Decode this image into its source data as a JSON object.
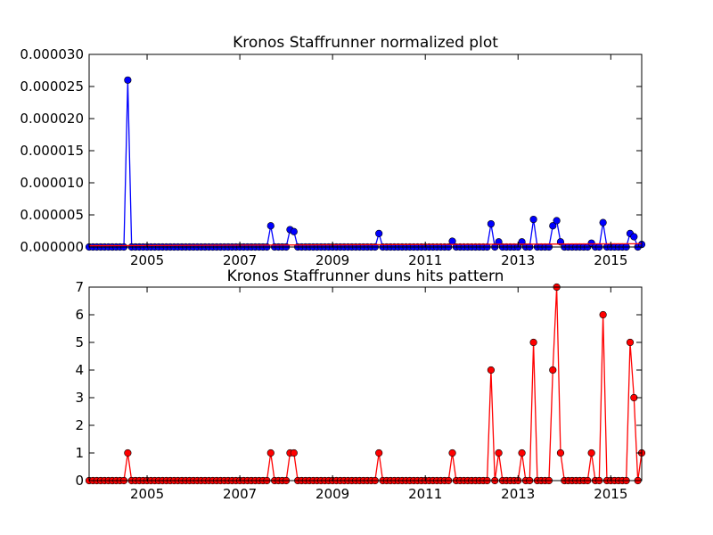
{
  "chart_data": [
    {
      "type": "line",
      "title": "Kronos Staffrunner normalized plot",
      "xlabel": "",
      "ylabel": "",
      "x_ticks": [
        "2005",
        "2007",
        "2009",
        "2011",
        "2013",
        "2015"
      ],
      "y_ticks": [
        "0.000000",
        "0.000005",
        "0.000010",
        "0.000015",
        "0.000020",
        "0.000025",
        "0.000030"
      ],
      "xlim": [
        "2003-10",
        "2015-09"
      ],
      "ylim": [
        0,
        3e-05
      ],
      "grid": false,
      "series": [
        {
          "color": "#0000ff",
          "marker": "circle",
          "points": [
            [
              "2004-08",
              2.6e-05
            ],
            [
              "2007-09",
              3.3e-06
            ],
            [
              "2008-02",
              2.7e-06
            ],
            [
              "2008-03",
              2.4e-06
            ],
            [
              "2010-01",
              2.1e-06
            ],
            [
              "2011-08",
              9e-07
            ],
            [
              "2012-06",
              3.6e-06
            ],
            [
              "2012-08",
              8e-07
            ],
            [
              "2013-02",
              8e-07
            ],
            [
              "2013-05",
              4.3e-06
            ],
            [
              "2013-10",
              3.3e-06
            ],
            [
              "2013-11",
              4.1e-06
            ],
            [
              "2013-12",
              8e-07
            ],
            [
              "2014-08",
              6e-07
            ],
            [
              "2014-11",
              3.8e-06
            ],
            [
              "2015-06",
              2.1e-06
            ],
            [
              "2015-07",
              1.6e-06
            ],
            [
              "2015-09",
              4e-07
            ]
          ]
        },
        {
          "color": "#ff0000",
          "marker": "none",
          "points": [
            [
              "2003-10",
              2e-07
            ],
            [
              "2015-09",
              5e-07
            ]
          ]
        }
      ]
    },
    {
      "type": "line",
      "title": "Kronos Staffrunner duns hits pattern",
      "xlabel": "",
      "ylabel": "",
      "x_ticks": [
        "2005",
        "2007",
        "2009",
        "2011",
        "2013",
        "2015"
      ],
      "y_ticks": [
        "0",
        "1",
        "2",
        "3",
        "4",
        "5",
        "6",
        "7"
      ],
      "xlim": [
        "2003-10",
        "2015-09"
      ],
      "ylim": [
        0,
        7
      ],
      "grid": false,
      "series": [
        {
          "color": "#ff0000",
          "marker": "circle",
          "points": [
            [
              "2004-08",
              1
            ],
            [
              "2007-09",
              1
            ],
            [
              "2008-02",
              1
            ],
            [
              "2008-03",
              1
            ],
            [
              "2010-01",
              1
            ],
            [
              "2011-08",
              1
            ],
            [
              "2012-06",
              4
            ],
            [
              "2012-08",
              1
            ],
            [
              "2013-02",
              1
            ],
            [
              "2013-05",
              5
            ],
            [
              "2013-10",
              4
            ],
            [
              "2013-11",
              7
            ],
            [
              "2013-12",
              1
            ],
            [
              "2014-08",
              1
            ],
            [
              "2014-11",
              6
            ],
            [
              "2015-06",
              5
            ],
            [
              "2015-07",
              3
            ],
            [
              "2015-09",
              1
            ]
          ]
        }
      ]
    }
  ]
}
